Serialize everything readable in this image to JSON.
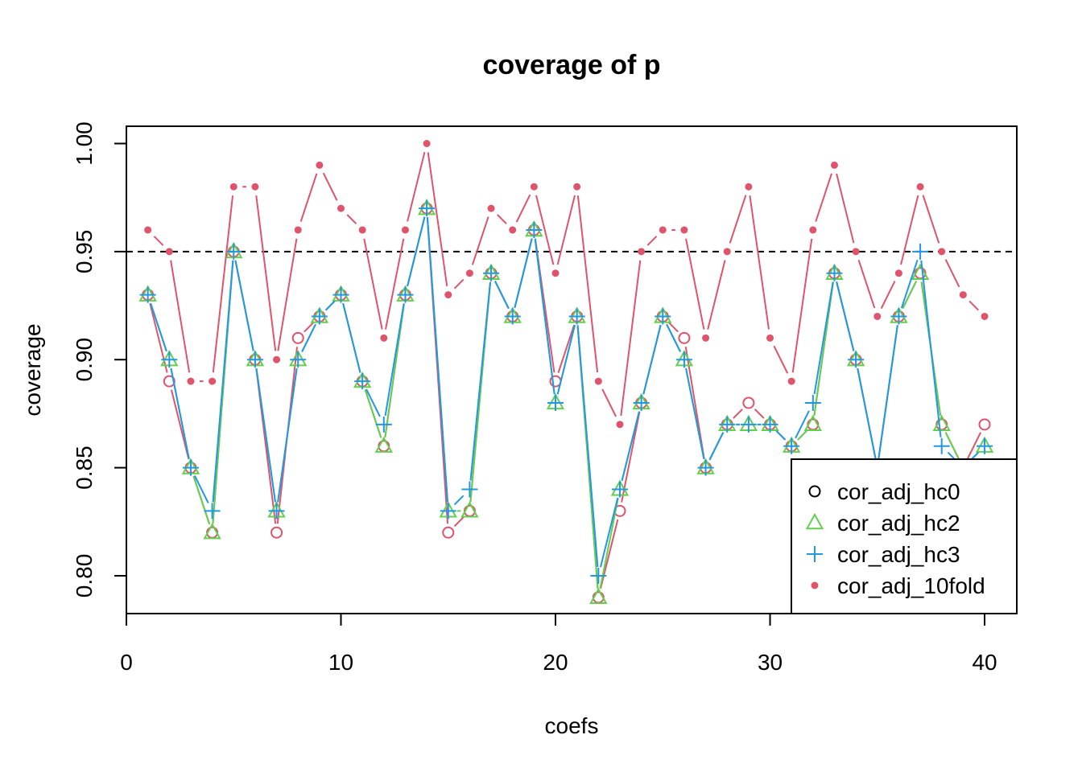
{
  "chart_data": {
    "type": "line",
    "title": "coverage of p",
    "xlabel": "coefs",
    "ylabel": "coverage",
    "xlim": [
      0,
      41.5
    ],
    "ylim": [
      0.7825,
      1.008
    ],
    "x_ticks": [
      0,
      10,
      20,
      30,
      40
    ],
    "y_ticks": [
      0.8,
      0.85,
      0.9,
      0.95,
      1.0
    ],
    "x_tick_labels": [
      "0",
      "10",
      "20",
      "30",
      "40"
    ],
    "y_tick_labels": [
      "0.80",
      "0.85",
      "0.90",
      "0.95",
      "1.00"
    ],
    "reference_line": {
      "y": 0.95,
      "style": "dashed",
      "color": "#000000"
    },
    "grid": false,
    "legend_position": "bottom-right",
    "x": [
      1,
      2,
      3,
      4,
      5,
      6,
      7,
      8,
      9,
      10,
      11,
      12,
      13,
      14,
      15,
      16,
      17,
      18,
      19,
      20,
      21,
      22,
      23,
      24,
      25,
      26,
      27,
      28,
      29,
      30,
      31,
      32,
      33,
      34,
      35,
      36,
      37,
      38,
      39,
      40
    ],
    "series": [
      {
        "name": "cor_adj_hc0",
        "color": "#df536b",
        "marker": "open-circle",
        "values": [
          0.93,
          0.89,
          0.85,
          0.82,
          0.95,
          0.9,
          0.82,
          0.91,
          0.92,
          0.93,
          0.89,
          0.86,
          0.93,
          0.97,
          0.82,
          0.83,
          0.94,
          0.92,
          0.96,
          0.89,
          0.92,
          0.79,
          0.83,
          0.88,
          0.92,
          0.91,
          0.85,
          0.87,
          0.88,
          0.87,
          0.86,
          0.87,
          0.94,
          0.9,
          0.85,
          0.92,
          0.94,
          0.87,
          0.85,
          0.87
        ]
      },
      {
        "name": "cor_adj_hc2",
        "color": "#61d04f",
        "marker": "open-triangle",
        "values": [
          0.93,
          0.9,
          0.85,
          0.82,
          0.95,
          0.9,
          0.83,
          0.9,
          0.92,
          0.93,
          0.89,
          0.86,
          0.93,
          0.97,
          0.83,
          0.83,
          0.94,
          0.92,
          0.96,
          0.88,
          0.92,
          0.79,
          0.84,
          0.88,
          0.92,
          0.9,
          0.85,
          0.87,
          0.87,
          0.87,
          0.86,
          0.87,
          0.94,
          0.9,
          0.85,
          0.92,
          0.94,
          0.87,
          0.85,
          0.86
        ]
      },
      {
        "name": "cor_adj_hc3",
        "color": "#2297e6",
        "marker": "plus",
        "values": [
          0.93,
          0.9,
          0.85,
          0.83,
          0.95,
          0.9,
          0.83,
          0.9,
          0.92,
          0.93,
          0.89,
          0.87,
          0.93,
          0.97,
          0.83,
          0.84,
          0.94,
          0.92,
          0.96,
          0.88,
          0.92,
          0.8,
          0.84,
          0.88,
          0.92,
          0.9,
          0.85,
          0.87,
          0.87,
          0.87,
          0.86,
          0.88,
          0.94,
          0.9,
          0.85,
          0.92,
          0.95,
          0.86,
          0.85,
          0.86
        ]
      },
      {
        "name": "cor_adj_10fold",
        "color": "#df536b",
        "marker": "filled-dot",
        "values": [
          0.96,
          0.95,
          0.89,
          0.89,
          0.98,
          0.98,
          0.9,
          0.96,
          0.99,
          0.97,
          0.96,
          0.91,
          0.96,
          1.0,
          0.93,
          0.94,
          0.97,
          0.96,
          0.98,
          0.94,
          0.98,
          0.89,
          0.87,
          0.95,
          0.96,
          0.96,
          0.91,
          0.95,
          0.98,
          0.91,
          0.89,
          0.96,
          0.99,
          0.95,
          0.92,
          0.94,
          0.98,
          0.95,
          0.93,
          0.92
        ]
      }
    ]
  }
}
